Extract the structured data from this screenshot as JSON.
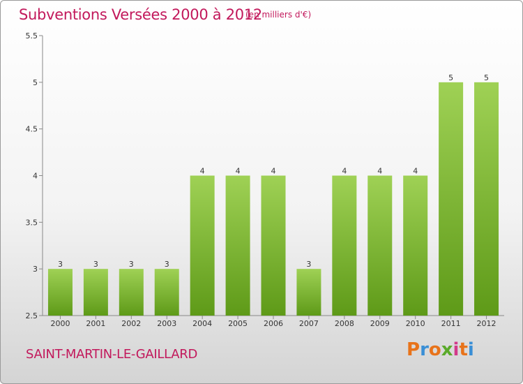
{
  "header": {
    "title": "Subventions Versées 2000 à 2012",
    "subtitle": "(en milliers d'€)"
  },
  "footer": {
    "commune": "SAINT-MARTIN-LE-GAILLARD",
    "logo_text": "Proxiti"
  },
  "colors": {
    "title": "#c2185b",
    "bar_top": "#9fd155",
    "bar_bottom": "#5e9a18",
    "logo_letters": [
      "#e8731a",
      "#3a8fd6",
      "#e8731a",
      "#5aaa2a",
      "#d23a8a",
      "#e8731a",
      "#3a8fd6"
    ]
  },
  "chart_data": {
    "type": "bar",
    "categories": [
      "2000",
      "2001",
      "2002",
      "2003",
      "2004",
      "2005",
      "2006",
      "2007",
      "2008",
      "2009",
      "2010",
      "2011",
      "2012"
    ],
    "values": [
      3,
      3,
      3,
      3,
      4,
      4,
      4,
      3,
      4,
      4,
      4,
      5,
      5
    ],
    "title": "Subventions Versées 2000 à 2012",
    "xlabel": "",
    "ylabel": "",
    "ylim": [
      2.5,
      5.5
    ],
    "yticks": [
      2.5,
      3,
      3.5,
      4,
      4.5,
      5,
      5.5
    ],
    "ytick_labels": [
      "2.5",
      "3",
      "3.5",
      "4",
      "4.5",
      "5",
      "5.5"
    ],
    "grid": false,
    "legend": "none"
  }
}
